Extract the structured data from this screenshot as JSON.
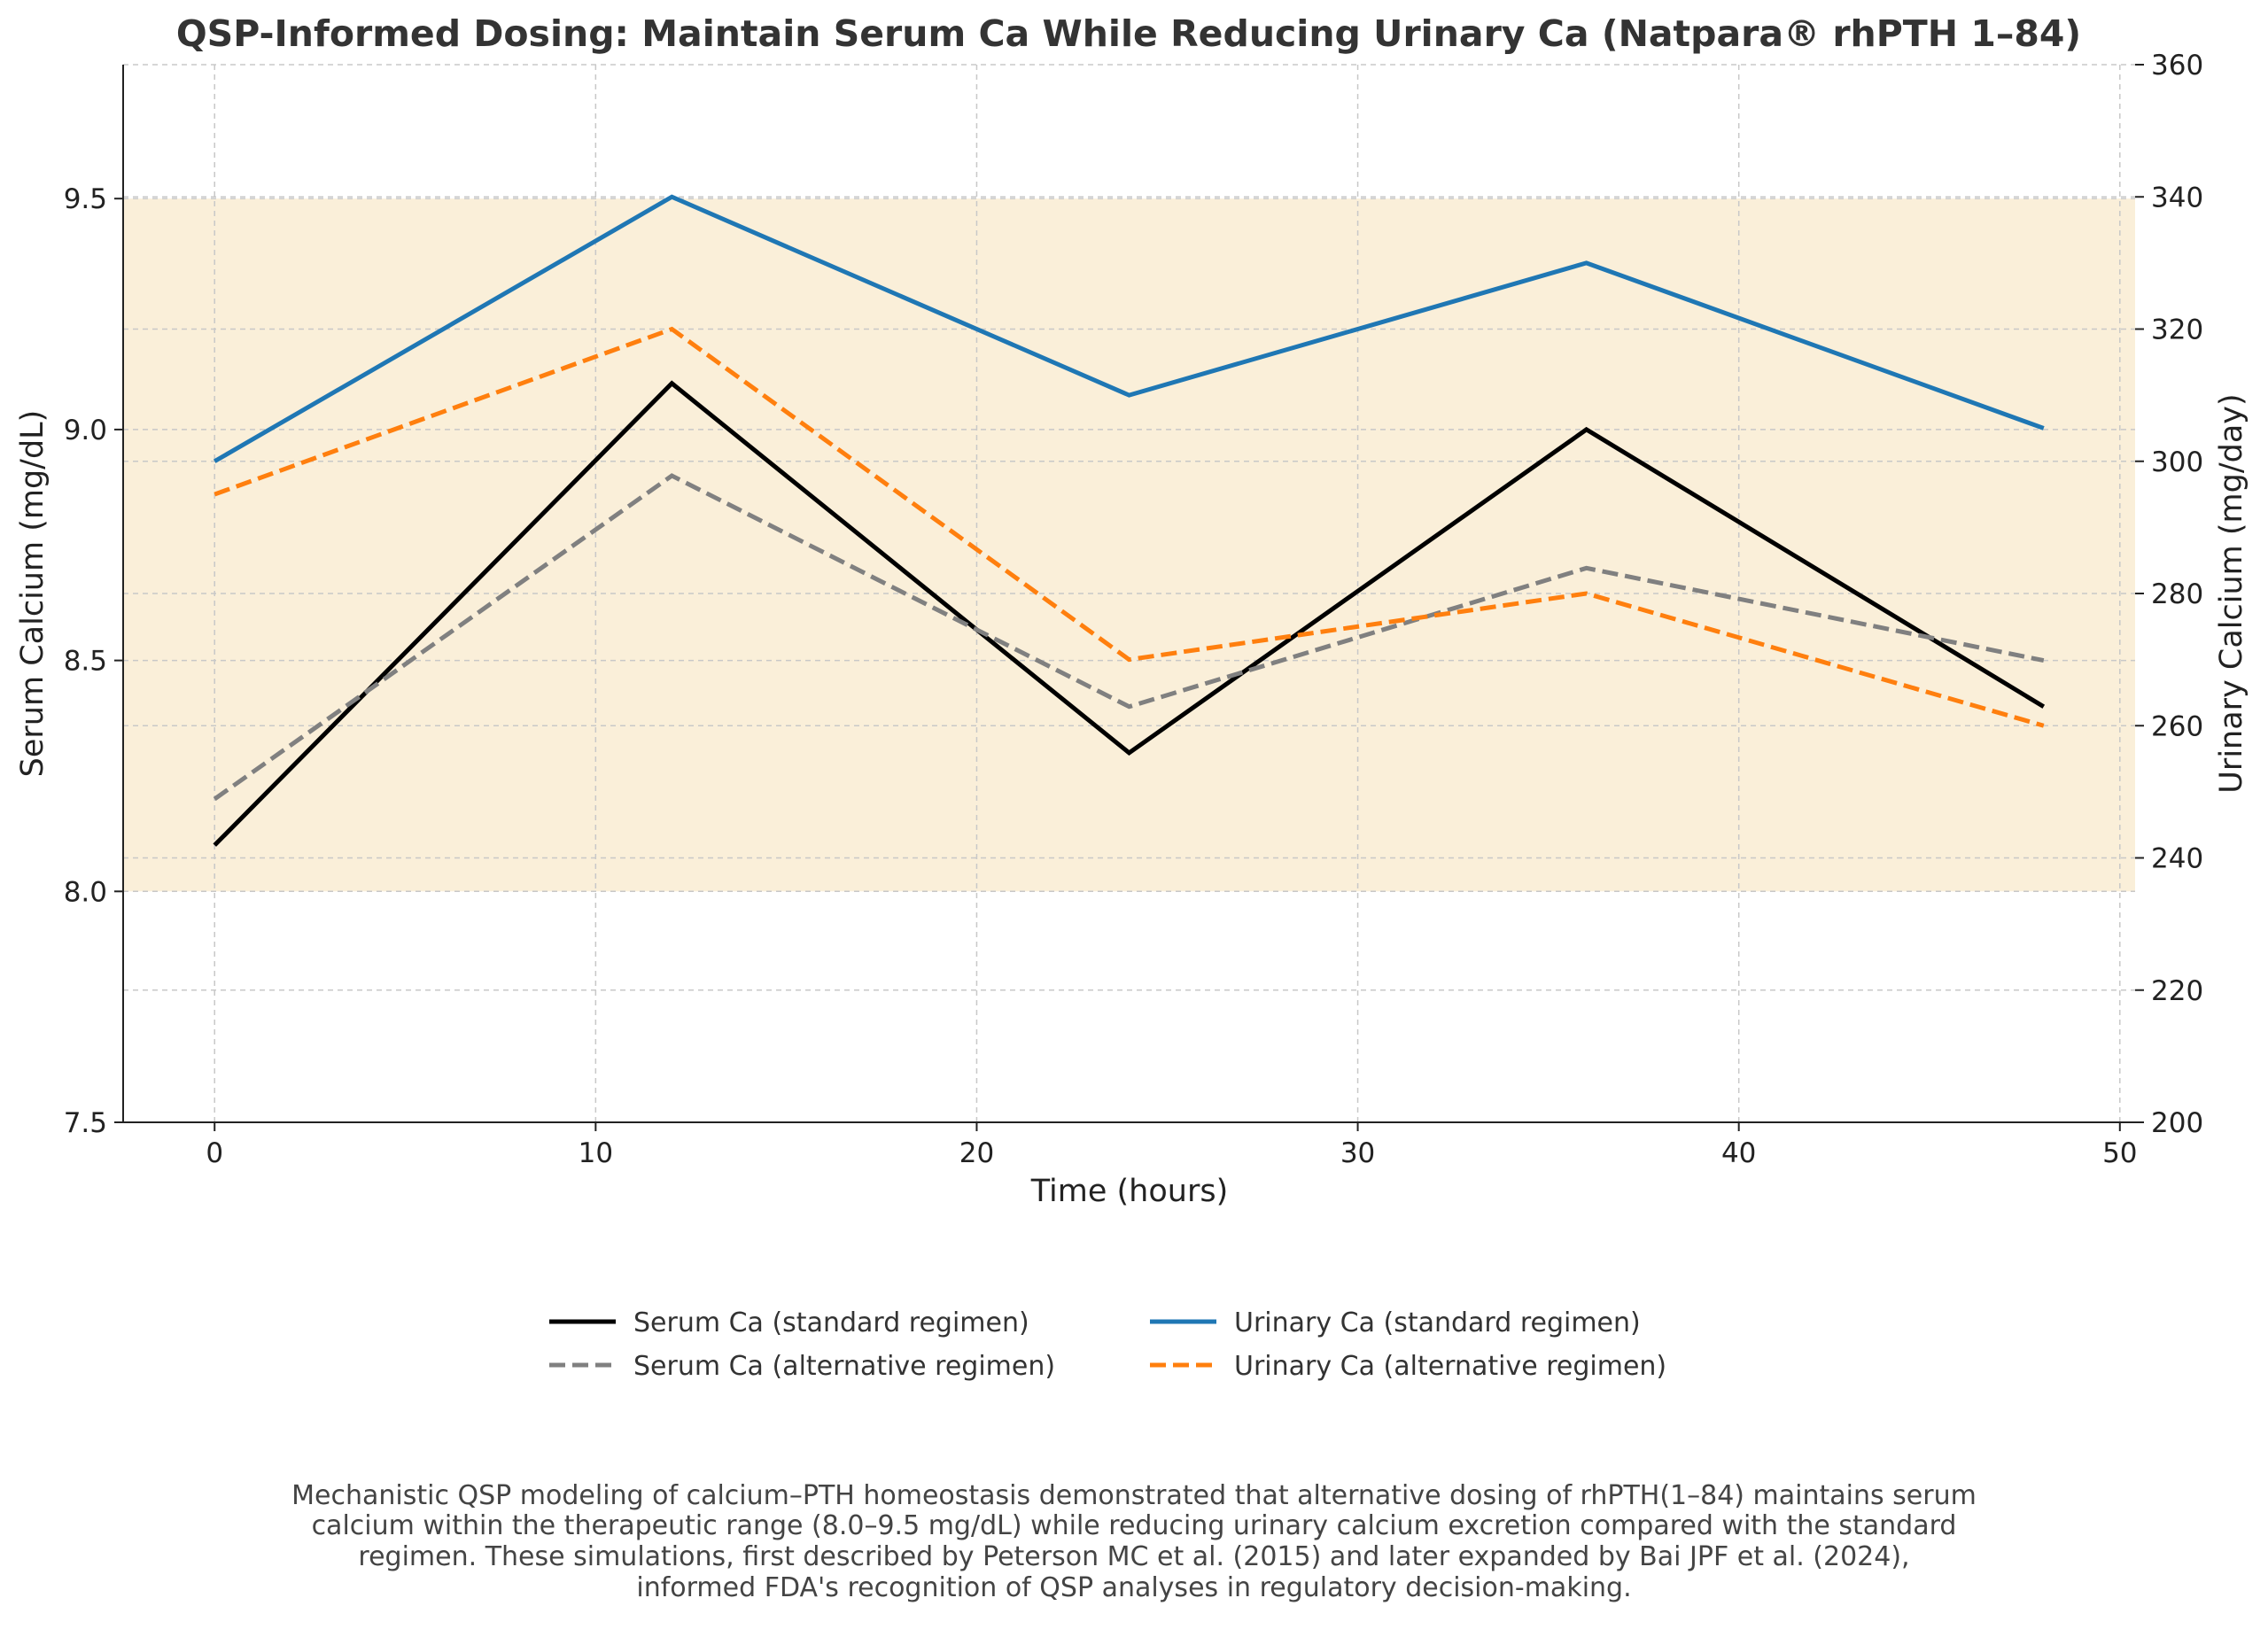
{
  "chart_data": {
    "type": "line",
    "title": "QSP-Informed Dosing: Maintain Serum Ca While Reducing Urinary Ca (Natpara® rhPTH 1–84)",
    "xlabel": "Time (hours)",
    "ylabel_left": "Serum Calcium (mg/dL)",
    "ylabel_right": "Urinary Calcium (mg/day)",
    "xlim": [
      -2.4,
      50.4
    ],
    "ylim_left": [
      7.5,
      9.79
    ],
    "ylim_right": [
      200,
      360
    ],
    "x_ticks": [
      "0",
      "10",
      "20",
      "30",
      "40",
      "50"
    ],
    "y_left_ticks": [
      "7.5",
      "8.0",
      "8.5",
      "9.0",
      "9.5"
    ],
    "y_right_ticks": [
      "200",
      "220",
      "240",
      "260",
      "280",
      "300",
      "320",
      "340",
      "360"
    ],
    "grid": true,
    "legend_placement": "bottom-center",
    "shaded_band": {
      "axis": "left",
      "range": [
        8.0,
        9.5
      ],
      "color": "#faefd9"
    },
    "x": [
      0,
      12,
      24,
      36,
      48
    ],
    "series": [
      {
        "name": "Serum Ca (standard regimen)",
        "axis": "left",
        "values": [
          8.1,
          9.1,
          8.3,
          9.0,
          8.4
        ],
        "color": "#000000",
        "style": "solid"
      },
      {
        "name": "Serum Ca (alternative regimen)",
        "axis": "left",
        "values": [
          8.2,
          8.9,
          8.4,
          8.7,
          8.5
        ],
        "color": "#808080",
        "style": "dashed"
      },
      {
        "name": "Urinary Ca (standard regimen)",
        "axis": "right",
        "values": [
          300,
          340,
          310,
          330,
          305
        ],
        "color": "#1f77b4",
        "style": "solid"
      },
      {
        "name": "Urinary Ca (alternative regimen)",
        "axis": "right",
        "values": [
          295,
          320,
          270,
          280,
          260
        ],
        "color": "#ff7f0e",
        "style": "dashed"
      }
    ]
  },
  "caption": [
    "Mechanistic QSP modeling of calcium–PTH homeostasis demonstrated that alternative dosing of rhPTH(1–84) maintains serum",
    "calcium within the therapeutic range (8.0–9.5 mg/dL) while reducing urinary calcium excretion compared with the standard",
    "regimen. These simulations, first described by Peterson MC et al. (2015) and later expanded by Bai JPF et al. (2024),",
    "informed FDA's recognition of QSP analyses in regulatory decision-making."
  ]
}
